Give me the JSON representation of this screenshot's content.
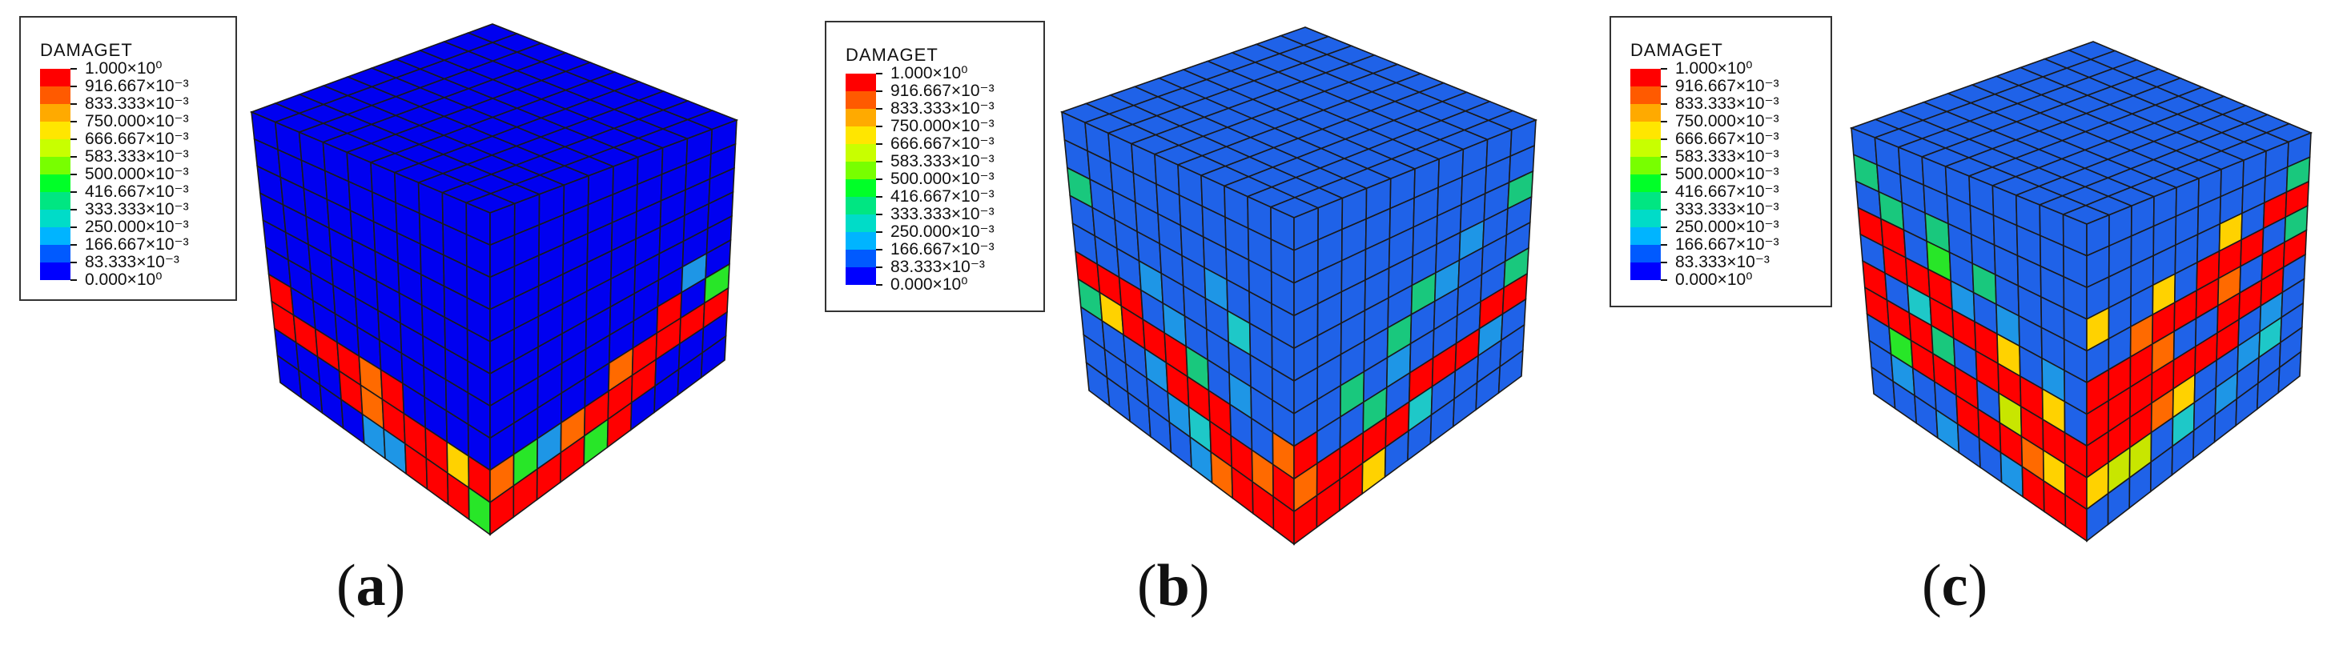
{
  "figure": {
    "background": "#ffffff",
    "grid_line_color": "#1a1a1a",
    "panels": [
      {
        "id": "a",
        "label_open": "(",
        "label_letter": "a",
        "label_close": ")",
        "legend": {
          "title": "DAMAGET",
          "levels": [
            "1.000×10⁰",
            "916.667×10⁻³",
            "833.333×10⁻³",
            "750.000×10⁻³",
            "666.667×10⁻³",
            "583.333×10⁻³",
            "500.000×10⁻³",
            "416.667×10⁻³",
            "333.333×10⁻³",
            "250.000×10⁻³",
            "166.667×10⁻³",
            "83.333×10⁻³",
            "0.000×10⁰"
          ],
          "colors": [
            "#ff0000",
            "#ff5a00",
            "#ffaa00",
            "#ffe600",
            "#c8ff00",
            "#78ff00",
            "#00ff28",
            "#00e682",
            "#00dcc8",
            "#00b4ff",
            "#005aff",
            "#0000ff"
          ]
        }
      },
      {
        "id": "b",
        "label_open": "(",
        "label_letter": "b",
        "label_close": ")",
        "legend": {
          "title": "DAMAGET",
          "levels": [
            "1.000×10⁰",
            "916.667×10⁻³",
            "833.333×10⁻³",
            "750.000×10⁻³",
            "666.667×10⁻³",
            "583.333×10⁻³",
            "500.000×10⁻³",
            "416.667×10⁻³",
            "333.333×10⁻³",
            "250.000×10⁻³",
            "166.667×10⁻³",
            "83.333×10⁻³",
            "0.000×10⁰"
          ],
          "colors": [
            "#ff0000",
            "#ff5a00",
            "#ffaa00",
            "#ffe600",
            "#c8ff00",
            "#78ff00",
            "#00ff28",
            "#00e682",
            "#00dcc8",
            "#00b4ff",
            "#005aff",
            "#0000ff"
          ]
        }
      },
      {
        "id": "c",
        "label_open": "(",
        "label_letter": "c",
        "label_close": ")",
        "legend": {
          "title": "DAMAGET",
          "levels": [
            "1.000×10⁰",
            "916.667×10⁻³",
            "833.333×10⁻³",
            "750.000×10⁻³",
            "666.667×10⁻³",
            "583.333×10⁻³",
            "500.000×10⁻³",
            "416.667×10⁻³",
            "333.333×10⁻³",
            "250.000×10⁻³",
            "166.667×10⁻³",
            "83.333×10⁻³",
            "0.000×10⁰"
          ],
          "colors": [
            "#ff0000",
            "#ff5a00",
            "#ffaa00",
            "#ffe600",
            "#c8ff00",
            "#78ff00",
            "#00ff28",
            "#00e682",
            "#00dcc8",
            "#00b4ff",
            "#005aff",
            "#0000ff"
          ]
        }
      }
    ]
  }
}
